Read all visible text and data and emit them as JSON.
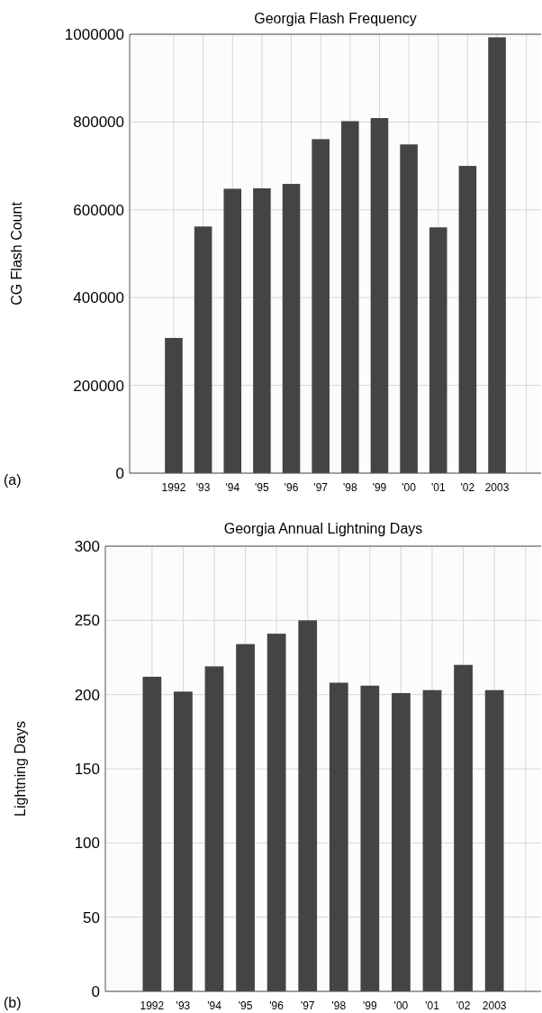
{
  "chart_data": [
    {
      "type": "bar",
      "title": "Georgia Flash Frequency",
      "ylabel": "CG Flash Count",
      "annotations": [
        "(a)"
      ],
      "categories": [
        "1992",
        "'93",
        "'94",
        "'95",
        "'96",
        "'97",
        "'98",
        "'99",
        "'00",
        "'01",
        "'02",
        "2003"
      ],
      "values": [
        308000,
        562000,
        648000,
        649000,
        659000,
        761000,
        802000,
        809000,
        749000,
        560000,
        700000,
        993000
      ],
      "color": "#444444",
      "ylim": [
        0,
        1000000
      ],
      "yticks": [
        0,
        200000,
        400000,
        600000,
        800000,
        1000000
      ],
      "grid": true
    },
    {
      "type": "bar",
      "title": "Georgia Annual Lightning Days",
      "ylabel": "Lightning Days",
      "annotations": [
        "(b)"
      ],
      "categories": [
        "1992",
        "'93",
        "'94",
        "'95",
        "'96",
        "'97",
        "'98",
        "'99",
        "'00",
        "'01",
        "'02",
        "2003"
      ],
      "values": [
        212,
        202,
        219,
        234,
        241,
        250,
        208,
        206,
        201,
        203,
        220,
        203
      ],
      "color": "#444444",
      "ylim": [
        0,
        300
      ],
      "yticks": [
        0,
        50,
        100,
        150,
        200,
        250,
        300
      ],
      "grid": true
    }
  ]
}
